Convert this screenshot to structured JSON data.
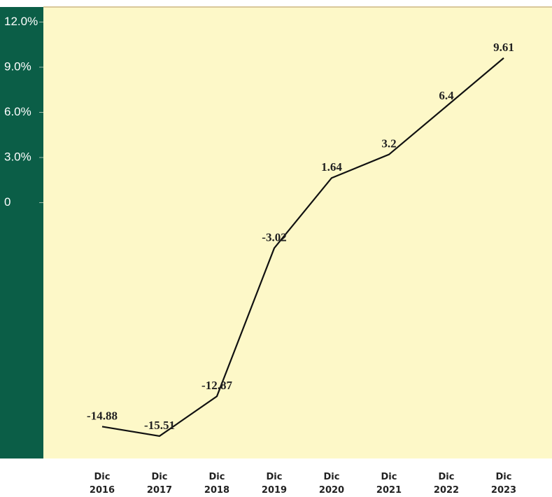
{
  "chart_data": {
    "type": "line",
    "categories": [
      "Dic 2016",
      "Dic 2017",
      "Dic 2018",
      "Dic 2019",
      "Dic 2020",
      "Dic 2021",
      "Dic 2022",
      "Dic 2023"
    ],
    "values": [
      -14.88,
      -15.51,
      -12.87,
      -3.02,
      1.64,
      3.2,
      6.4,
      9.61
    ],
    "color": "#111111",
    "ylim": [
      -17,
      13
    ],
    "yticks": [
      0,
      {
        "value": 3,
        "label": "3.0%"
      },
      {
        "value": 6,
        "label": "6.0%"
      },
      {
        "value": 9,
        "label": "9.0%"
      },
      {
        "value": 12,
        "label": "12.0%"
      }
    ],
    "grid": false
  }
}
